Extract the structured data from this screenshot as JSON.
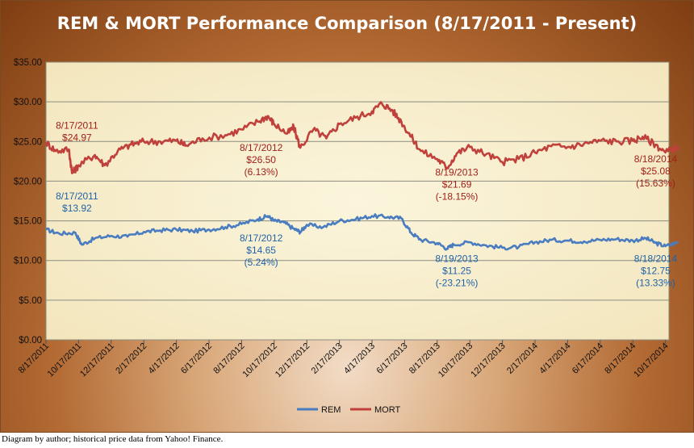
{
  "caption": "Diagram by author; historical price data from Yahoo! Finance.",
  "chart_data": {
    "type": "line",
    "title": "REM & MORT Performance Comparison (8/17/2011 - Present)",
    "ylim": [
      0,
      35
    ],
    "yticks": [
      "$0.00",
      "$5.00",
      "$10.00",
      "$15.00",
      "$20.00",
      "$25.00",
      "$30.00",
      "$35.00"
    ],
    "ytick_values": [
      0,
      5,
      10,
      15,
      20,
      25,
      30,
      35
    ],
    "grid": true,
    "legend_position": "bottom",
    "x_ticks": [
      "8/17/2011",
      "10/17/2011",
      "12/17/2011",
      "2/17/2012",
      "4/17/2012",
      "6/17/2012",
      "8/17/2012",
      "10/17/2012",
      "12/17/2012",
      "2/17/2013",
      "4/17/2013",
      "6/17/2013",
      "8/17/2013",
      "10/17/2013",
      "12/17/2013",
      "2/17/2014",
      "4/17/2014",
      "6/17/2014",
      "8/17/2014",
      "10/17/2014"
    ],
    "series": [
      {
        "name": "REM",
        "color": "#4a7cc0",
        "points": [
          [
            0,
            13.9
          ],
          [
            0.4,
            13.4
          ],
          [
            0.9,
            13.5
          ],
          [
            1.1,
            12.0
          ],
          [
            1.5,
            12.8
          ],
          [
            2.0,
            13.1
          ],
          [
            2.5,
            13.0
          ],
          [
            3.0,
            13.6
          ],
          [
            3.5,
            13.8
          ],
          [
            4.0,
            13.9
          ],
          [
            4.5,
            13.7
          ],
          [
            5.0,
            13.9
          ],
          [
            5.5,
            14.2
          ],
          [
            6.0,
            14.6
          ],
          [
            6.5,
            15.2
          ],
          [
            6.8,
            15.6
          ],
          [
            7.0,
            15.0
          ],
          [
            7.3,
            14.8
          ],
          [
            7.6,
            14.0
          ],
          [
            7.8,
            13.6
          ],
          [
            8.0,
            14.5
          ],
          [
            8.5,
            14.2
          ],
          [
            9.0,
            15.0
          ],
          [
            9.5,
            15.2
          ],
          [
            10.0,
            15.6
          ],
          [
            10.5,
            15.5
          ],
          [
            10.9,
            15.3
          ],
          [
            11.2,
            13.5
          ],
          [
            11.5,
            12.6
          ],
          [
            12.0,
            12.2
          ],
          [
            12.3,
            11.5
          ],
          [
            12.5,
            12.0
          ],
          [
            13.0,
            12.3
          ],
          [
            13.5,
            11.9
          ],
          [
            14.0,
            11.6
          ],
          [
            14.5,
            11.7
          ],
          [
            15.0,
            12.3
          ],
          [
            15.5,
            12.6
          ],
          [
            16.0,
            12.5
          ],
          [
            16.5,
            12.4
          ],
          [
            17.0,
            12.6
          ],
          [
            17.5,
            12.7
          ],
          [
            18.0,
            12.5
          ],
          [
            18.4,
            12.8
          ],
          [
            18.7,
            12.2
          ],
          [
            19.0,
            11.8
          ],
          [
            19.4,
            12.3
          ]
        ]
      },
      {
        "name": "MORT",
        "color": "#c0413c",
        "points": [
          [
            0,
            24.9
          ],
          [
            0.3,
            23.8
          ],
          [
            0.7,
            24.0
          ],
          [
            0.8,
            21.0
          ],
          [
            1.0,
            22.0
          ],
          [
            1.5,
            23.3
          ],
          [
            1.8,
            22.0
          ],
          [
            2.2,
            23.8
          ],
          [
            2.6,
            24.6
          ],
          [
            3.0,
            25.0
          ],
          [
            3.5,
            25.0
          ],
          [
            4.0,
            25.1
          ],
          [
            4.3,
            24.5
          ],
          [
            4.8,
            25.4
          ],
          [
            5.5,
            25.8
          ],
          [
            6.0,
            26.5
          ],
          [
            6.5,
            27.5
          ],
          [
            6.8,
            28.2
          ],
          [
            7.0,
            27.2
          ],
          [
            7.4,
            26.0
          ],
          [
            7.6,
            26.8
          ],
          [
            7.8,
            24.2
          ],
          [
            8.2,
            26.5
          ],
          [
            8.6,
            25.4
          ],
          [
            9.0,
            27.2
          ],
          [
            9.5,
            28.0
          ],
          [
            10.0,
            28.8
          ],
          [
            10.3,
            29.8
          ],
          [
            10.6,
            29.0
          ],
          [
            10.9,
            27.5
          ],
          [
            11.2,
            25.6
          ],
          [
            11.5,
            23.8
          ],
          [
            12.0,
            22.8
          ],
          [
            12.3,
            21.7
          ],
          [
            12.6,
            23.5
          ],
          [
            13.0,
            24.3
          ],
          [
            13.5,
            23.4
          ],
          [
            14.0,
            22.4
          ],
          [
            14.5,
            22.8
          ],
          [
            15.0,
            23.6
          ],
          [
            15.5,
            24.4
          ],
          [
            16.0,
            24.3
          ],
          [
            16.5,
            24.7
          ],
          [
            17.0,
            25.1
          ],
          [
            17.5,
            25.0
          ],
          [
            18.0,
            25.1
          ],
          [
            18.3,
            25.6
          ],
          [
            18.7,
            24.6
          ],
          [
            19.0,
            23.6
          ],
          [
            19.4,
            24.4
          ]
        ]
      }
    ],
    "annotations": [
      {
        "series": "MORT",
        "x": 0.95,
        "y": 26.6,
        "lines": [
          "8/17/2011",
          "$24.97"
        ]
      },
      {
        "series": "MORT",
        "x": 6.6,
        "y": 23.8,
        "lines": [
          "8/17/2012",
          "$26.50",
          "(6.13%)"
        ]
      },
      {
        "series": "MORT",
        "x": 12.6,
        "y": 20.7,
        "lines": [
          "8/19/2013",
          "$21.69",
          "(-18.15%)"
        ]
      },
      {
        "series": "MORT",
        "x": 18.7,
        "y": 22.4,
        "lines": [
          "8/18/2014",
          "$25.08",
          "(15.63%)"
        ]
      },
      {
        "series": "REM",
        "x": 0.95,
        "y": 17.7,
        "lines": [
          "8/17/2011",
          "$13.92"
        ]
      },
      {
        "series": "REM",
        "x": 6.6,
        "y": 12.4,
        "lines": [
          "8/17/2012",
          "$14.65",
          "(5.24%)"
        ]
      },
      {
        "series": "REM",
        "x": 12.6,
        "y": 9.8,
        "lines": [
          "8/19/2013",
          "$11.25",
          "(-23.21%)"
        ]
      },
      {
        "series": "REM",
        "x": 18.7,
        "y": 9.8,
        "lines": [
          "8/18/2014",
          "$12.75",
          "(13.33%)"
        ]
      }
    ]
  }
}
